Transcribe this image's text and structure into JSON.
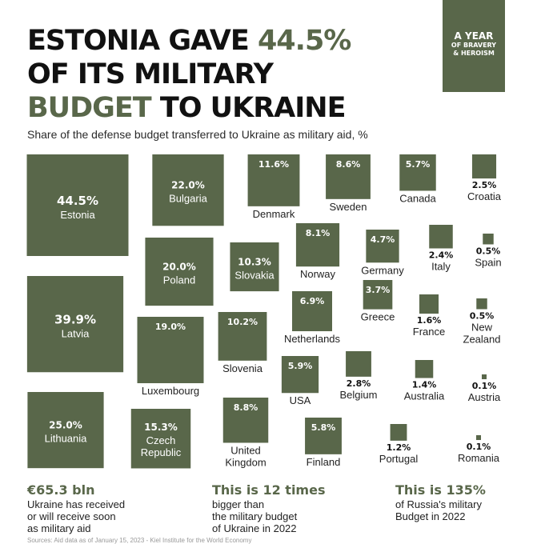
{
  "title": {
    "part1": "ESTONIA GAVE ",
    "accent1": "44.5%",
    "part2": "OF ITS MILITARY",
    "accent2": "BUDGET",
    "part3": " TO UKRAINE"
  },
  "badge": {
    "line1": "A YEAR",
    "line2": "OF BRAVERY",
    "line3": "& HEROISM"
  },
  "subtitle": "Share of the defense budget transferred to Ukraine as military aid, %",
  "colors": {
    "square": "#59674a",
    "accent": "#59674a",
    "text": "#111111"
  },
  "chart_data": {
    "type": "proportional-squares",
    "unit": "%",
    "items": [
      {
        "country": "Estonia",
        "value": 44.5,
        "label": "44.5%"
      },
      {
        "country": "Latvia",
        "value": 39.9,
        "label": "39.9%"
      },
      {
        "country": "Lithuania",
        "value": 25.0,
        "label": "25.0%"
      },
      {
        "country": "Bulgaria",
        "value": 22.0,
        "label": "22.0%"
      },
      {
        "country": "Poland",
        "value": 20.0,
        "label": "20.0%"
      },
      {
        "country": "Luxembourg",
        "value": 19.0,
        "label": "19.0%"
      },
      {
        "country": "Czech Republic",
        "value": 15.3,
        "label": "15.3%"
      },
      {
        "country": "Denmark",
        "value": 11.6,
        "label": "11.6%"
      },
      {
        "country": "Slovakia",
        "value": 10.3,
        "label": "10.3%"
      },
      {
        "country": "Slovenia",
        "value": 10.2,
        "label": "10.2%"
      },
      {
        "country": "United Kingdom",
        "value": 8.8,
        "label": "8.8%"
      },
      {
        "country": "Sweden",
        "value": 8.6,
        "label": "8.6%"
      },
      {
        "country": "Norway",
        "value": 8.1,
        "label": "8.1%"
      },
      {
        "country": "Netherlands",
        "value": 6.9,
        "label": "6.9%"
      },
      {
        "country": "USA",
        "value": 5.9,
        "label": "5.9%"
      },
      {
        "country": "Finland",
        "value": 5.8,
        "label": "5.8%"
      },
      {
        "country": "Canada",
        "value": 5.7,
        "label": "5.7%"
      },
      {
        "country": "Germany",
        "value": 4.7,
        "label": "4.7%"
      },
      {
        "country": "Greece",
        "value": 3.7,
        "label": "3.7%"
      },
      {
        "country": "Belgium",
        "value": 2.8,
        "label": "2.8%"
      },
      {
        "country": "Croatia",
        "value": 2.5,
        "label": "2.5%"
      },
      {
        "country": "Italy",
        "value": 2.4,
        "label": "2.4%"
      },
      {
        "country": "France",
        "value": 1.6,
        "label": "1.6%"
      },
      {
        "country": "Australia",
        "value": 1.4,
        "label": "1.4%"
      },
      {
        "country": "Portugal",
        "value": 1.2,
        "label": "1.2%"
      },
      {
        "country": "Spain",
        "value": 0.5,
        "label": "0.5%"
      },
      {
        "country": "New Zealand",
        "value": 0.5,
        "label": "0.5%"
      },
      {
        "country": "Austria",
        "value": 0.1,
        "label": "0.1%"
      },
      {
        "country": "Romania",
        "value": 0.1,
        "label": "0.1%"
      }
    ]
  },
  "footer": [
    {
      "big": "€65.3 bln",
      "lines": [
        "Ukraine has received",
        "or will receive soon",
        "as military aid"
      ]
    },
    {
      "big": "This is 12 times",
      "lines": [
        "bigger than",
        "the military budget",
        "of Ukraine in 2022"
      ]
    },
    {
      "big": "This is 135%",
      "lines": [
        "of Russia's military",
        "Budget in 2022"
      ]
    }
  ],
  "source": "Sources: Aid data as of January 15, 2023 - Kiel Institute for the World Economy"
}
